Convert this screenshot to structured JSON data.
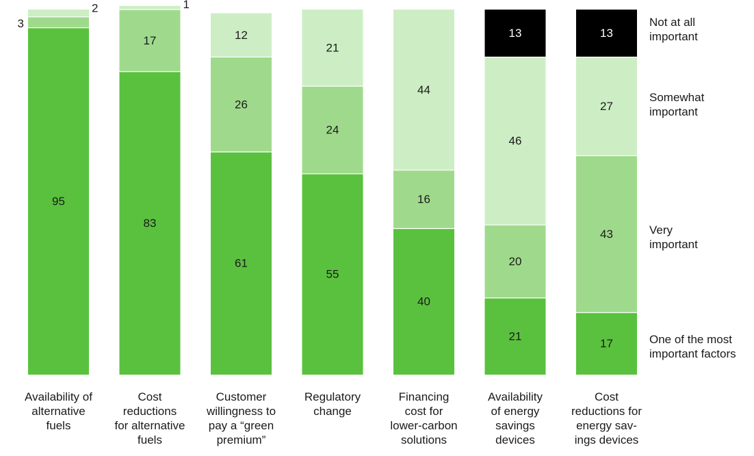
{
  "chart_data": {
    "type": "bar",
    "stacked": true,
    "categories": [
      "Availability of alternative fuels",
      "Cost reductions for alternative fuels",
      "Customer willingness to pay a “green premium”",
      "Regulatory change",
      "Financing cost for lower-carbon solutions",
      "Availability of energy savings devices",
      "Cost reductions for energy sav- ings devices"
    ],
    "series": [
      {
        "name": "One of the most important factors",
        "color": "#5ac13e",
        "values": [
          95,
          83,
          61,
          55,
          40,
          21,
          17
        ]
      },
      {
        "name": "Very important",
        "color": "#9fda8c",
        "values": [
          3,
          17,
          26,
          24,
          16,
          20,
          43
        ]
      },
      {
        "name": "Somewhat important",
        "color": "#cdeec4",
        "values": [
          2,
          1,
          12,
          21,
          44,
          46,
          27
        ]
      },
      {
        "name": "Not at all important",
        "color": "#000000",
        "values": [
          0,
          0,
          0,
          0,
          0,
          13,
          13
        ]
      }
    ],
    "ylim": [
      0,
      100
    ],
    "grid": false,
    "legend_position": "right",
    "title": "",
    "xlabel": "",
    "ylabel": ""
  },
  "legend": [
    {
      "label_lines": [
        "Not at all",
        "important"
      ]
    },
    {
      "label_lines": [
        "Somewhat",
        "important"
      ]
    },
    {
      "label_lines": [
        "Very",
        "important"
      ]
    },
    {
      "label_lines": [
        "One of the most",
        "important factors"
      ]
    }
  ],
  "category_label_lines": [
    [
      "Availability of",
      "alternative",
      "fuels"
    ],
    [
      "Cost",
      "reductions",
      "for alternative",
      "fuels"
    ],
    [
      "Customer",
      "willingness to",
      "pay a “green",
      "premium”"
    ],
    [
      "Regulatory",
      "change"
    ],
    [
      "Financing",
      "cost for",
      "lower-carbon",
      "solutions"
    ],
    [
      "Availability",
      "of energy",
      "savings",
      "devices"
    ],
    [
      "Cost",
      "reductions for",
      "energy sav-",
      "ings devices"
    ]
  ]
}
